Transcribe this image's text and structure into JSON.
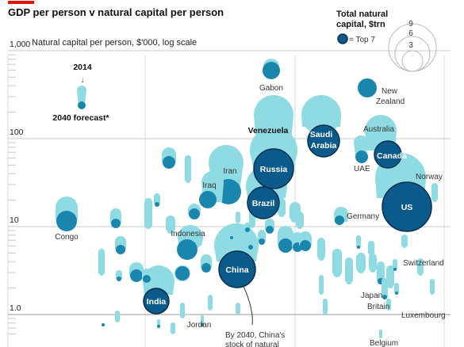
{
  "header": {
    "title": "GDP per person v natural capital per person",
    "subtitle": "Natural capital per person, $'000, log scale"
  },
  "legend": {
    "title_line1": "Total natural",
    "title_line2": "capital, $trn",
    "sizes": [
      "9",
      "6",
      "3"
    ],
    "top7_label": "= Top 7",
    "example_top": "2014",
    "example_arrow": "↓",
    "example_bottom": "2040 forecast*"
  },
  "annotation": {
    "china_line1": "By 2040, China's",
    "china_line2": "stock of natural"
  },
  "colors": {
    "light": "#8fdbe3",
    "mid": "#1b86ad",
    "top7": "#0b5a8c",
    "top7_stroke": "#06304d",
    "grid": "#d8d8d8",
    "accent": "#e3120b"
  },
  "chart_data": {
    "type": "scatter",
    "title": "GDP per person v natural capital per person",
    "ylabel": "Natural capital per person, $'000, log scale",
    "y_scale": "log",
    "ylim": [
      0.5,
      1000
    ],
    "y_ticks": [
      "1,000",
      "100",
      "10",
      "1.0"
    ],
    "grid": true,
    "size_legend": "Total natural capital, $trn",
    "series": [
      {
        "name": "US",
        "top7": true,
        "y2014": 40,
        "y2040": 13,
        "size": 9
      },
      {
        "name": "Russia",
        "top7": true,
        "y2014": 45,
        "y2040": 22,
        "size": 6
      },
      {
        "name": "China",
        "top7": true,
        "y2014": 4,
        "y2040": 3.5,
        "size": 6
      },
      {
        "name": "Brazil",
        "top7": true,
        "y2014": 20,
        "y2040": 12,
        "size": 4.5
      },
      {
        "name": "Canada",
        "top7": true,
        "y2014": 150,
        "y2040": 60,
        "size": 3
      },
      {
        "name": "Saudi Arabia",
        "top7": true,
        "y2014": 200,
        "y2040": 100,
        "size": 3.5
      },
      {
        "name": "India",
        "top7": true,
        "y2014": 2.8,
        "y2040": 1.6,
        "size": 2.5
      },
      {
        "name": "Venezuela",
        "top7": false,
        "y2014": 150,
        "y2040": 70,
        "size": 2
      },
      {
        "name": "Iran",
        "top7": false,
        "y2014": 50,
        "y2040": 25,
        "size": 2
      },
      {
        "name": "Iraq",
        "top7": false,
        "y2014": 35,
        "y2040": 18,
        "size": 1.2
      },
      {
        "name": "Indonesia",
        "top7": false,
        "y2014": 6,
        "y2040": 4,
        "size": 1.2
      },
      {
        "name": "Congo",
        "top7": false,
        "y2014": 13,
        "y2040": 11,
        "size": 1
      },
      {
        "name": "Gabon",
        "top7": false,
        "y2014": 300,
        "y2040": 180,
        "size": 0.8
      },
      {
        "name": "New Zealand",
        "top7": false,
        "y2014": 300,
        "y2040": 300,
        "size": 0.8
      },
      {
        "name": "Australia",
        "top7": false,
        "y2014": 150,
        "y2040": 90,
        "size": 2
      },
      {
        "name": "UAE",
        "top7": false,
        "y2014": 100,
        "y2040": 50,
        "size": 0.8
      },
      {
        "name": "Norway",
        "top7": false,
        "y2014": 80,
        "y2040": 50,
        "size": 0.7
      },
      {
        "name": "Germany",
        "top7": false,
        "y2014": 12,
        "y2040": 10,
        "size": 0.6
      },
      {
        "name": "Switzerland",
        "top7": false,
        "y2014": 5,
        "y2040": 4,
        "size": 0.3
      },
      {
        "name": "Japan",
        "top7": false,
        "y2014": 2,
        "y2040": 1.5,
        "size": 0.4
      },
      {
        "name": "Britain",
        "top7": false,
        "y2014": 2,
        "y2040": 1.2,
        "size": 0.3
      },
      {
        "name": "Luxembourg",
        "top7": false,
        "y2014": 1.5,
        "y2040": 0.9,
        "size": 0.1
      },
      {
        "name": "Jordan",
        "top7": false,
        "y2014": 0.9,
        "y2040": 0.7,
        "size": 0.1
      },
      {
        "name": "Belgium",
        "top7": false,
        "y2014": 0.6,
        "y2040": 0.5,
        "size": 0.1
      }
    ]
  }
}
